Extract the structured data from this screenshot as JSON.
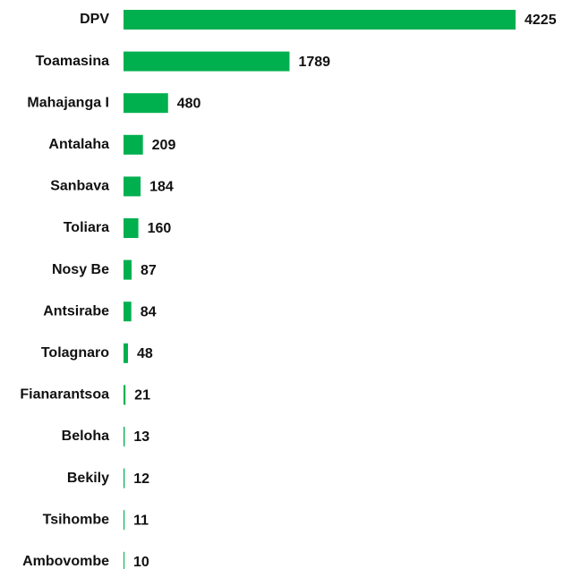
{
  "chart_data": {
    "type": "barh",
    "categories": [
      "DPV",
      "Toamasina",
      "Mahajanga I",
      "Antalaha",
      "Sanbava",
      "Toliara",
      "Nosy Be",
      "Antsirabe",
      "Tolagnaro",
      "Fianarantsoa",
      "Beloha",
      "Bekily",
      "Tsihombe",
      "Ambovombe"
    ],
    "values": [
      4225,
      1789,
      480,
      209,
      184,
      160,
      87,
      84,
      48,
      21,
      13,
      12,
      11,
      10
    ],
    "color": "#00b04f"
  }
}
